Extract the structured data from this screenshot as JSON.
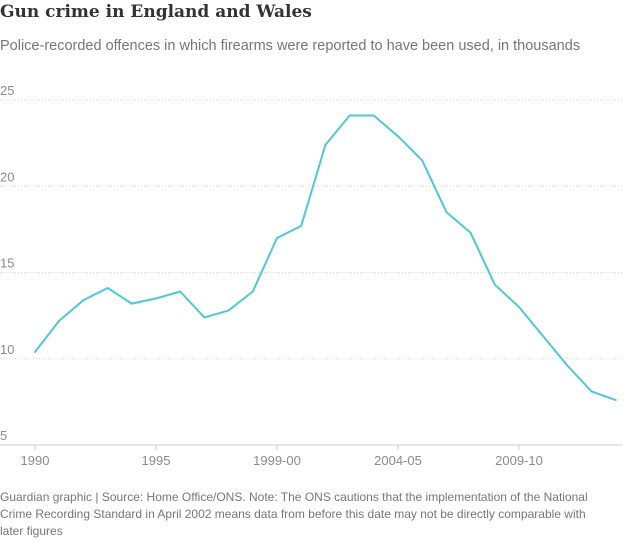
{
  "title": "Gun crime in England and Wales",
  "subtitle": "Police-recorded offences in which firearms were reported to have been used, in thousands",
  "footnote": "Guardian graphic | Source: Home Office/ONS. Note: The ONS cautions that the implementation of the National Crime Recording Standard in April 2002 means data from before this date may not be directly comparable with later figures",
  "colors": {
    "line": "#4fc8d4",
    "grid": "#d6d6d6",
    "axis": "#cccccc",
    "text": "#8a8a8a"
  },
  "chart_data": {
    "type": "line",
    "title": "Gun crime in England and Wales",
    "subtitle": "Police-recorded offences in which firearms were reported to have been used, in thousands",
    "x": [
      "1990",
      "1991",
      "1992",
      "1993",
      "1994",
      "1995",
      "1996",
      "1997",
      "1998",
      "1998-99",
      "1999-00",
      "2000-01",
      "2001-02",
      "2002-03",
      "2003-04",
      "2004-05",
      "2005-06",
      "2006-07",
      "2007-08",
      "2008-09",
      "2009-10",
      "2010-11",
      "2011-12",
      "2012-13",
      "2013-14"
    ],
    "xtick_labels": [
      "1990",
      "1995",
      "1999-00",
      "2004-05",
      "2009-10"
    ],
    "series": [
      {
        "values": [
          10.4,
          12.2,
          13.4,
          14.1,
          13.2,
          13.5,
          13.9,
          12.4,
          12.8,
          13.9,
          17.0,
          17.7,
          22.4,
          24.1,
          24.1,
          22.9,
          21.5,
          18.5,
          17.3,
          14.3,
          13.0,
          11.3,
          9.6,
          8.1,
          7.6
        ]
      }
    ],
    "yticks": [
      5,
      10,
      15,
      20,
      25
    ],
    "ylim": [
      5,
      25
    ],
    "grid": true,
    "legend": "none"
  }
}
